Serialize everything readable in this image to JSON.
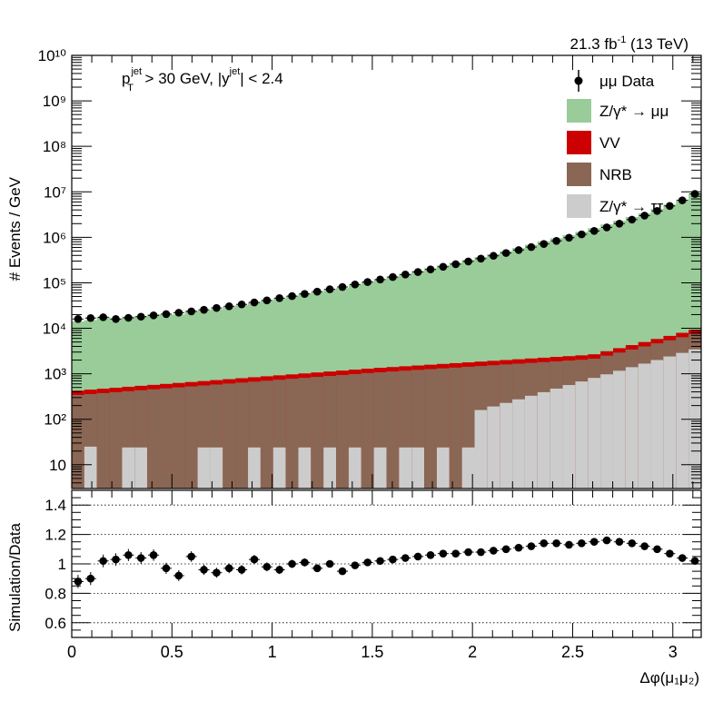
{
  "header": {
    "lumi_label": "21.3 fb",
    "lumi_sup": "-1",
    "energy_label": " (13 TeV)"
  },
  "cuts": {
    "p": "p",
    "sup1": "jet",
    "sub1": "T",
    "text1": " > 30 GeV,  |y",
    "sup2": "jet",
    "text2": "| < 2.4"
  },
  "legend": {
    "data": "μμ Data",
    "dy_mumu": "Z/γ* → μμ",
    "vv": "VV",
    "nrb": "NRB",
    "dy_tautau": "Z/γ* → ττ"
  },
  "colors": {
    "dy_mumu": "#99cc99",
    "vv": "#cc0000",
    "nrb": "#8a6654",
    "dy_tautau": "#cccccc",
    "data": "#000000"
  },
  "chart_data": [
    {
      "type": "bar",
      "stacked": true,
      "log_y": true,
      "ylabel": "# Events / GeV",
      "xlim": [
        0,
        3.1416
      ],
      "ylim": [
        3,
        10000000000.0
      ],
      "y_tick_labels": [
        "10",
        "10²",
        "10³",
        "10⁴",
        "10⁵",
        "10⁶",
        "10⁷",
        "10⁸",
        "10⁹",
        "10¹⁰"
      ],
      "n_bins": 50,
      "bin_width": 0.0628,
      "series": [
        {
          "name": "Z/γ* → ττ",
          "values": [
            0,
            25,
            0,
            0,
            0,
            0,
            0,
            0,
            0,
            0,
            0,
            0,
            0,
            0,
            0,
            0,
            0,
            0,
            0,
            0,
            0,
            0,
            24,
            0,
            0,
            0,
            0,
            0,
            0,
            0,
            0,
            0,
            0,
            0,
            0,
            0,
            0,
            0,
            0,
            0,
            0,
            0,
            0,
            0,
            0,
            0,
            0,
            0,
            0,
            0
          ]
        }
      ],
      "data": {
        "name": "μμ Data",
        "values": [
          16000,
          16800,
          17500,
          16000,
          17000,
          18000,
          19200,
          20500,
          22000,
          23500,
          25500,
          28000,
          30500,
          33500,
          37000,
          41000,
          46000,
          51000,
          57000,
          64000,
          72000,
          81000,
          92000,
          104000,
          118000,
          134000,
          152000,
          173000,
          197000,
          225000,
          257000,
          295000,
          340000,
          392000,
          452000,
          525000,
          610000,
          715000,
          835000,
          980000,
          1160000,
          1380000,
          1650000,
          2000000,
          2450000,
          3000000,
          3800000,
          4900000,
          6500000,
          9000000
        ]
      }
    },
    {
      "type": "scatter",
      "ylabel": "Simulation/Data",
      "xlabel": "Δφ(μ₁μ₂)",
      "xlim": [
        0,
        3.1416
      ],
      "ylim": [
        0.5,
        1.5
      ],
      "x_ticks": [
        0,
        0.5,
        1,
        1.5,
        2,
        2.5,
        3
      ],
      "x_tick_labels": [
        "0",
        "0.5",
        "1",
        "1.5",
        "2",
        "2.5",
        "3"
      ],
      "y_ticks": [
        0.6,
        0.8,
        1,
        1.2,
        1.4
      ],
      "y_tick_labels": [
        "0.6",
        "0.8",
        "1",
        "1.2",
        "1.4"
      ],
      "grid_y": [
        0.6,
        0.8,
        1.0,
        1.2,
        1.4
      ],
      "values": [
        0.88,
        0.9,
        1.02,
        1.03,
        1.06,
        1.04,
        1.06,
        0.97,
        0.92,
        1.05,
        0.96,
        0.94,
        0.97,
        0.96,
        1.03,
        0.98,
        0.96,
        1.0,
        1.01,
        0.97,
        1.0,
        0.95,
        0.99,
        1.01,
        1.02,
        1.03,
        1.04,
        1.05,
        1.06,
        1.07,
        1.07,
        1.08,
        1.08,
        1.09,
        1.1,
        1.11,
        1.12,
        1.14,
        1.14,
        1.13,
        1.14,
        1.15,
        1.16,
        1.15,
        1.14,
        1.12,
        1.1,
        1.07,
        1.04,
        1.02
      ]
    }
  ]
}
